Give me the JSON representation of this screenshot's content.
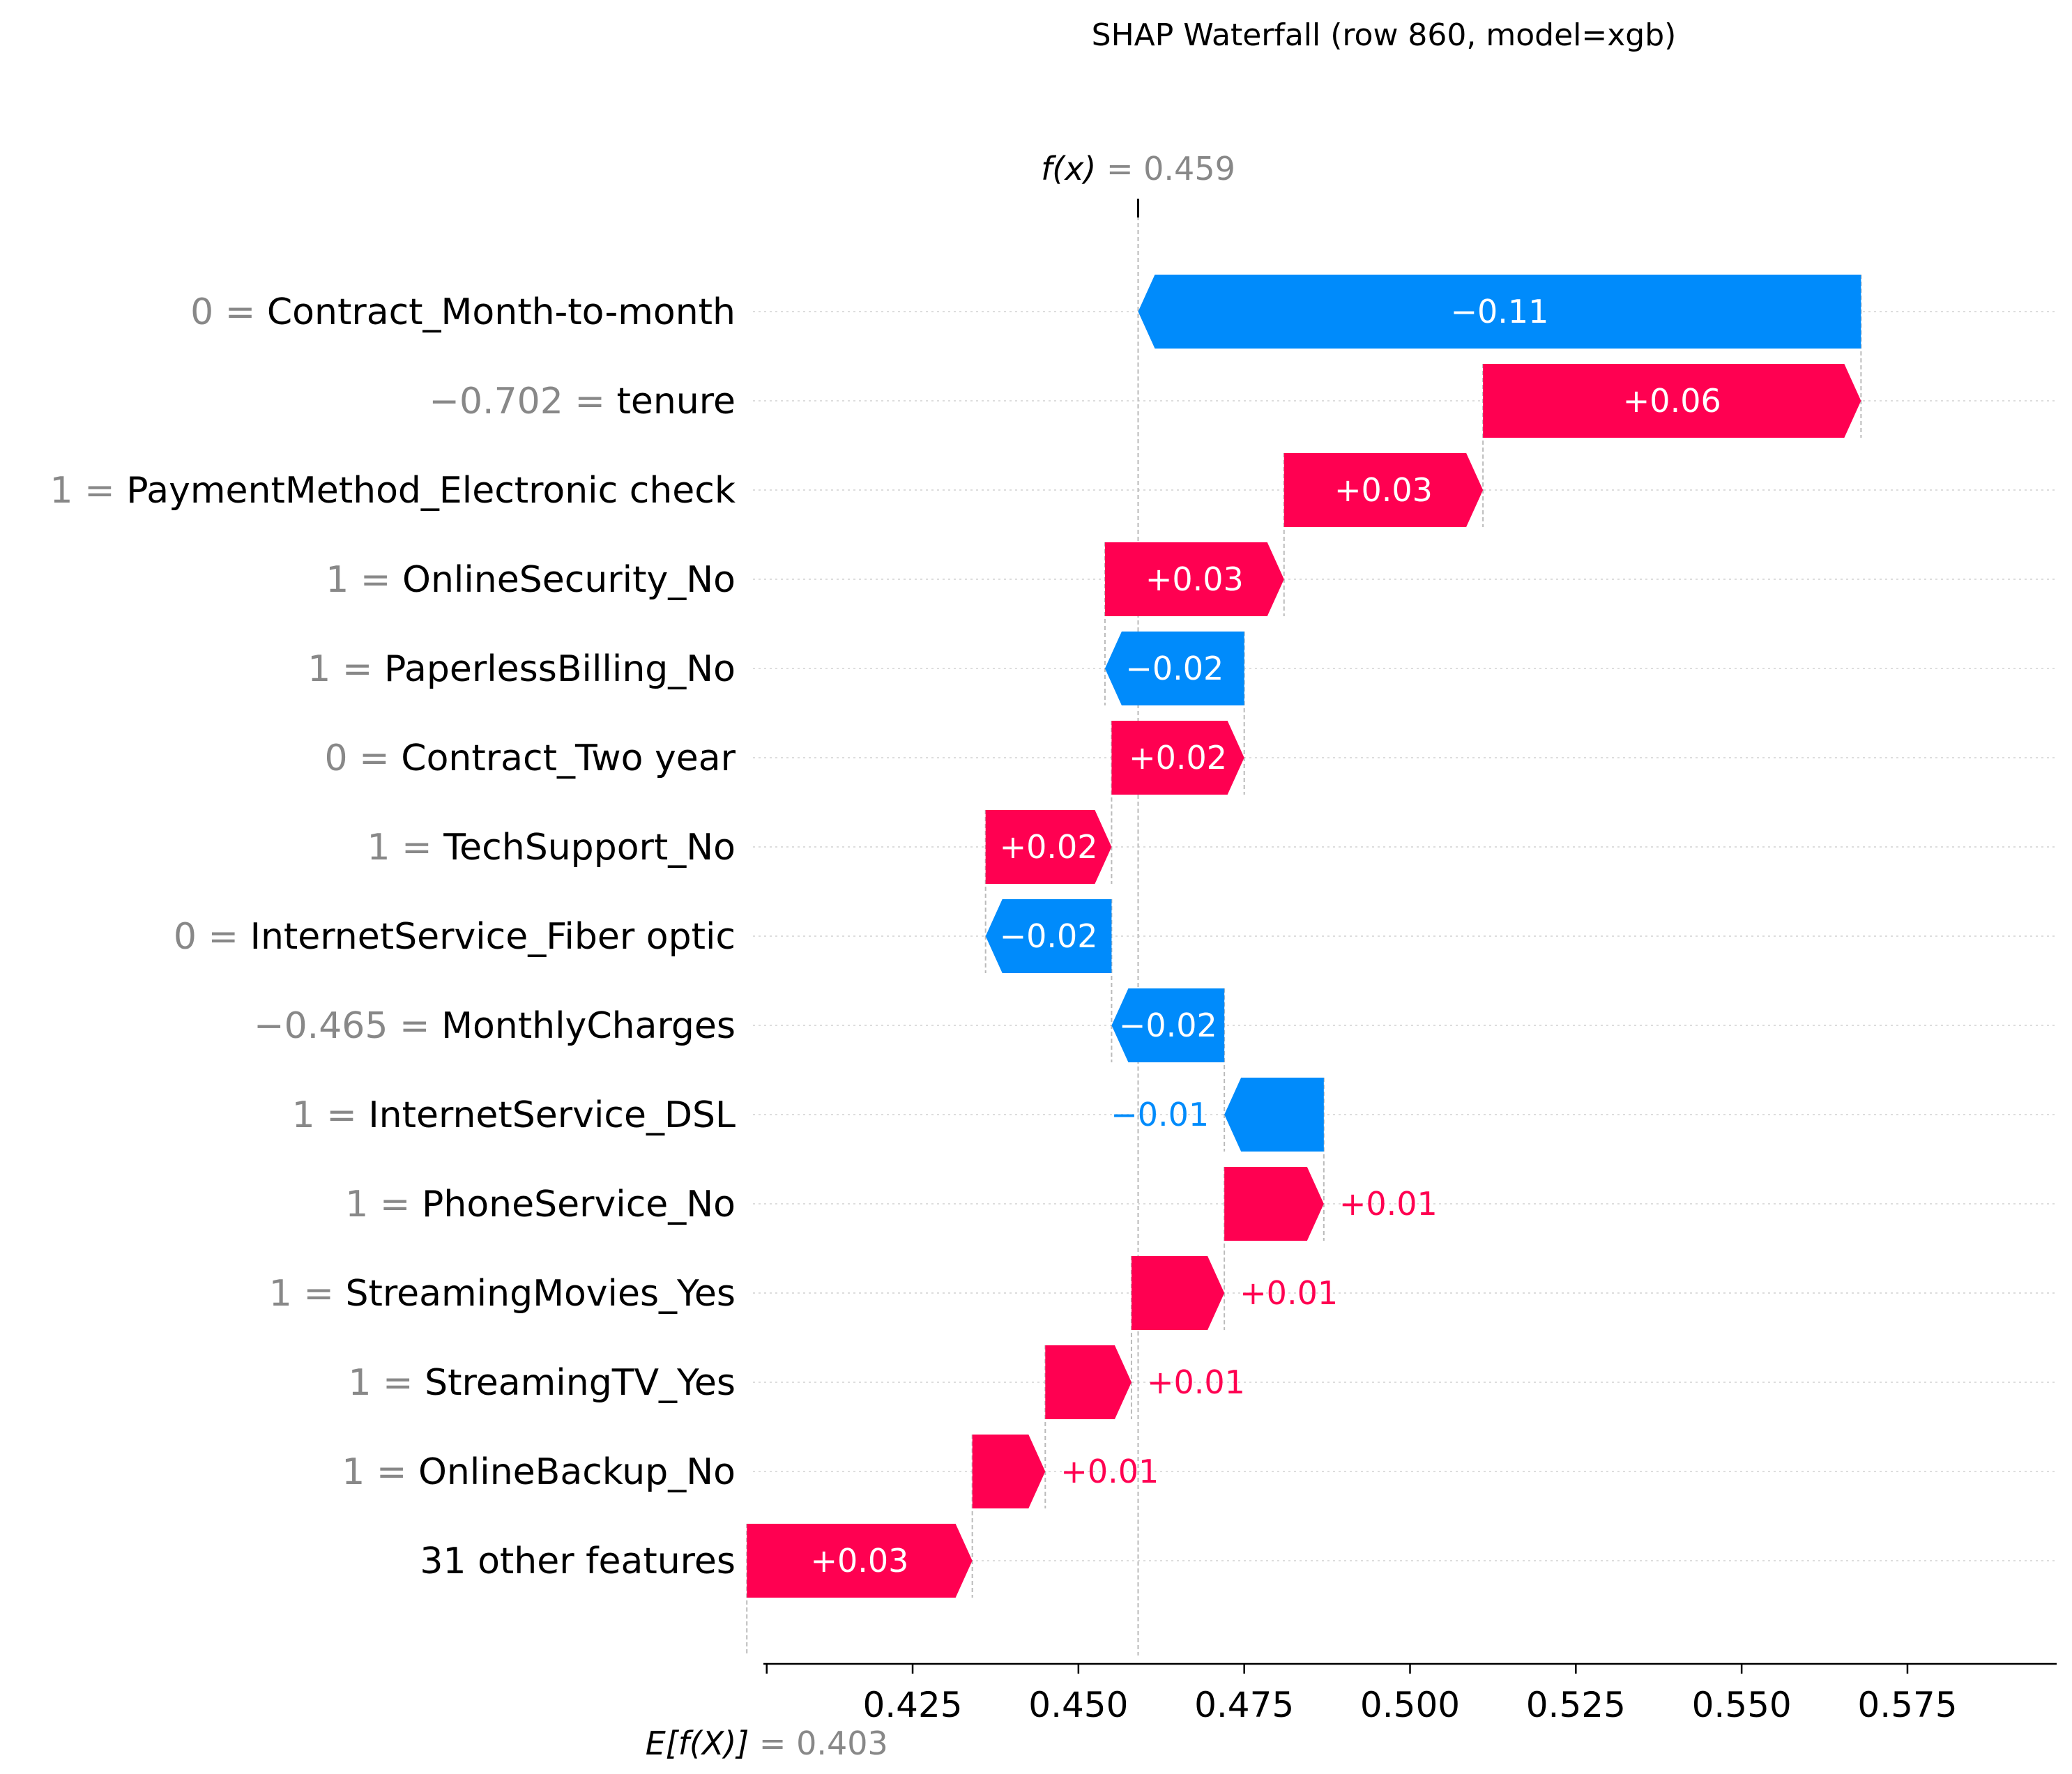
{
  "chart_data": {
    "type": "waterfall",
    "title": "SHAP Waterfall (row 860, model=xgb)",
    "xlim": [
      0.4025,
      0.5975
    ],
    "xticks": [
      "0.425",
      "0.450",
      "0.475",
      "0.500",
      "0.525",
      "0.550",
      "0.575"
    ],
    "xtick_values": [
      0.425,
      0.45,
      0.475,
      0.5,
      0.525,
      0.55,
      0.575
    ],
    "base_value": 0.403,
    "base_label": "E[f(X)]",
    "base_value_text": "0.403",
    "output_value": 0.459,
    "output_label": "f(x)",
    "output_value_text": "0.459",
    "positive_color": "#ff0051",
    "negative_color": "#008bfb",
    "features": [
      {
        "value": "0",
        "name": "Contract_Month-to-month",
        "shap": -0.109,
        "label": "−0.11"
      },
      {
        "value": "−0.702",
        "name": "tenure",
        "shap": 0.057,
        "label": "+0.06"
      },
      {
        "value": "1",
        "name": "PaymentMethod_Electronic check",
        "shap": 0.03,
        "label": "+0.03"
      },
      {
        "value": "1",
        "name": "OnlineSecurity_No",
        "shap": 0.027,
        "label": "+0.03"
      },
      {
        "value": "1",
        "name": "PaperlessBilling_No",
        "shap": -0.021,
        "label": "−0.02"
      },
      {
        "value": "0",
        "name": "Contract_Two year",
        "shap": 0.02,
        "label": "+0.02"
      },
      {
        "value": "1",
        "name": "TechSupport_No",
        "shap": 0.019,
        "label": "+0.02"
      },
      {
        "value": "0",
        "name": "InternetService_Fiber optic",
        "shap": -0.019,
        "label": "−0.02"
      },
      {
        "value": "−0.465",
        "name": "MonthlyCharges",
        "shap": -0.017,
        "label": "−0.02"
      },
      {
        "value": "1",
        "name": "InternetService_DSL",
        "shap": -0.015,
        "label": "−0.01"
      },
      {
        "value": "1",
        "name": "PhoneService_No",
        "shap": 0.015,
        "label": "+0.01"
      },
      {
        "value": "1",
        "name": "StreamingMovies_Yes",
        "shap": 0.014,
        "label": "+0.01"
      },
      {
        "value": "1",
        "name": "StreamingTV_Yes",
        "shap": 0.013,
        "label": "+0.01"
      },
      {
        "value": "1",
        "name": "OnlineBackup_No",
        "shap": 0.011,
        "label": "+0.01"
      },
      {
        "value": "",
        "name": "31 other features",
        "shap": 0.034,
        "label": "+0.03"
      }
    ]
  }
}
